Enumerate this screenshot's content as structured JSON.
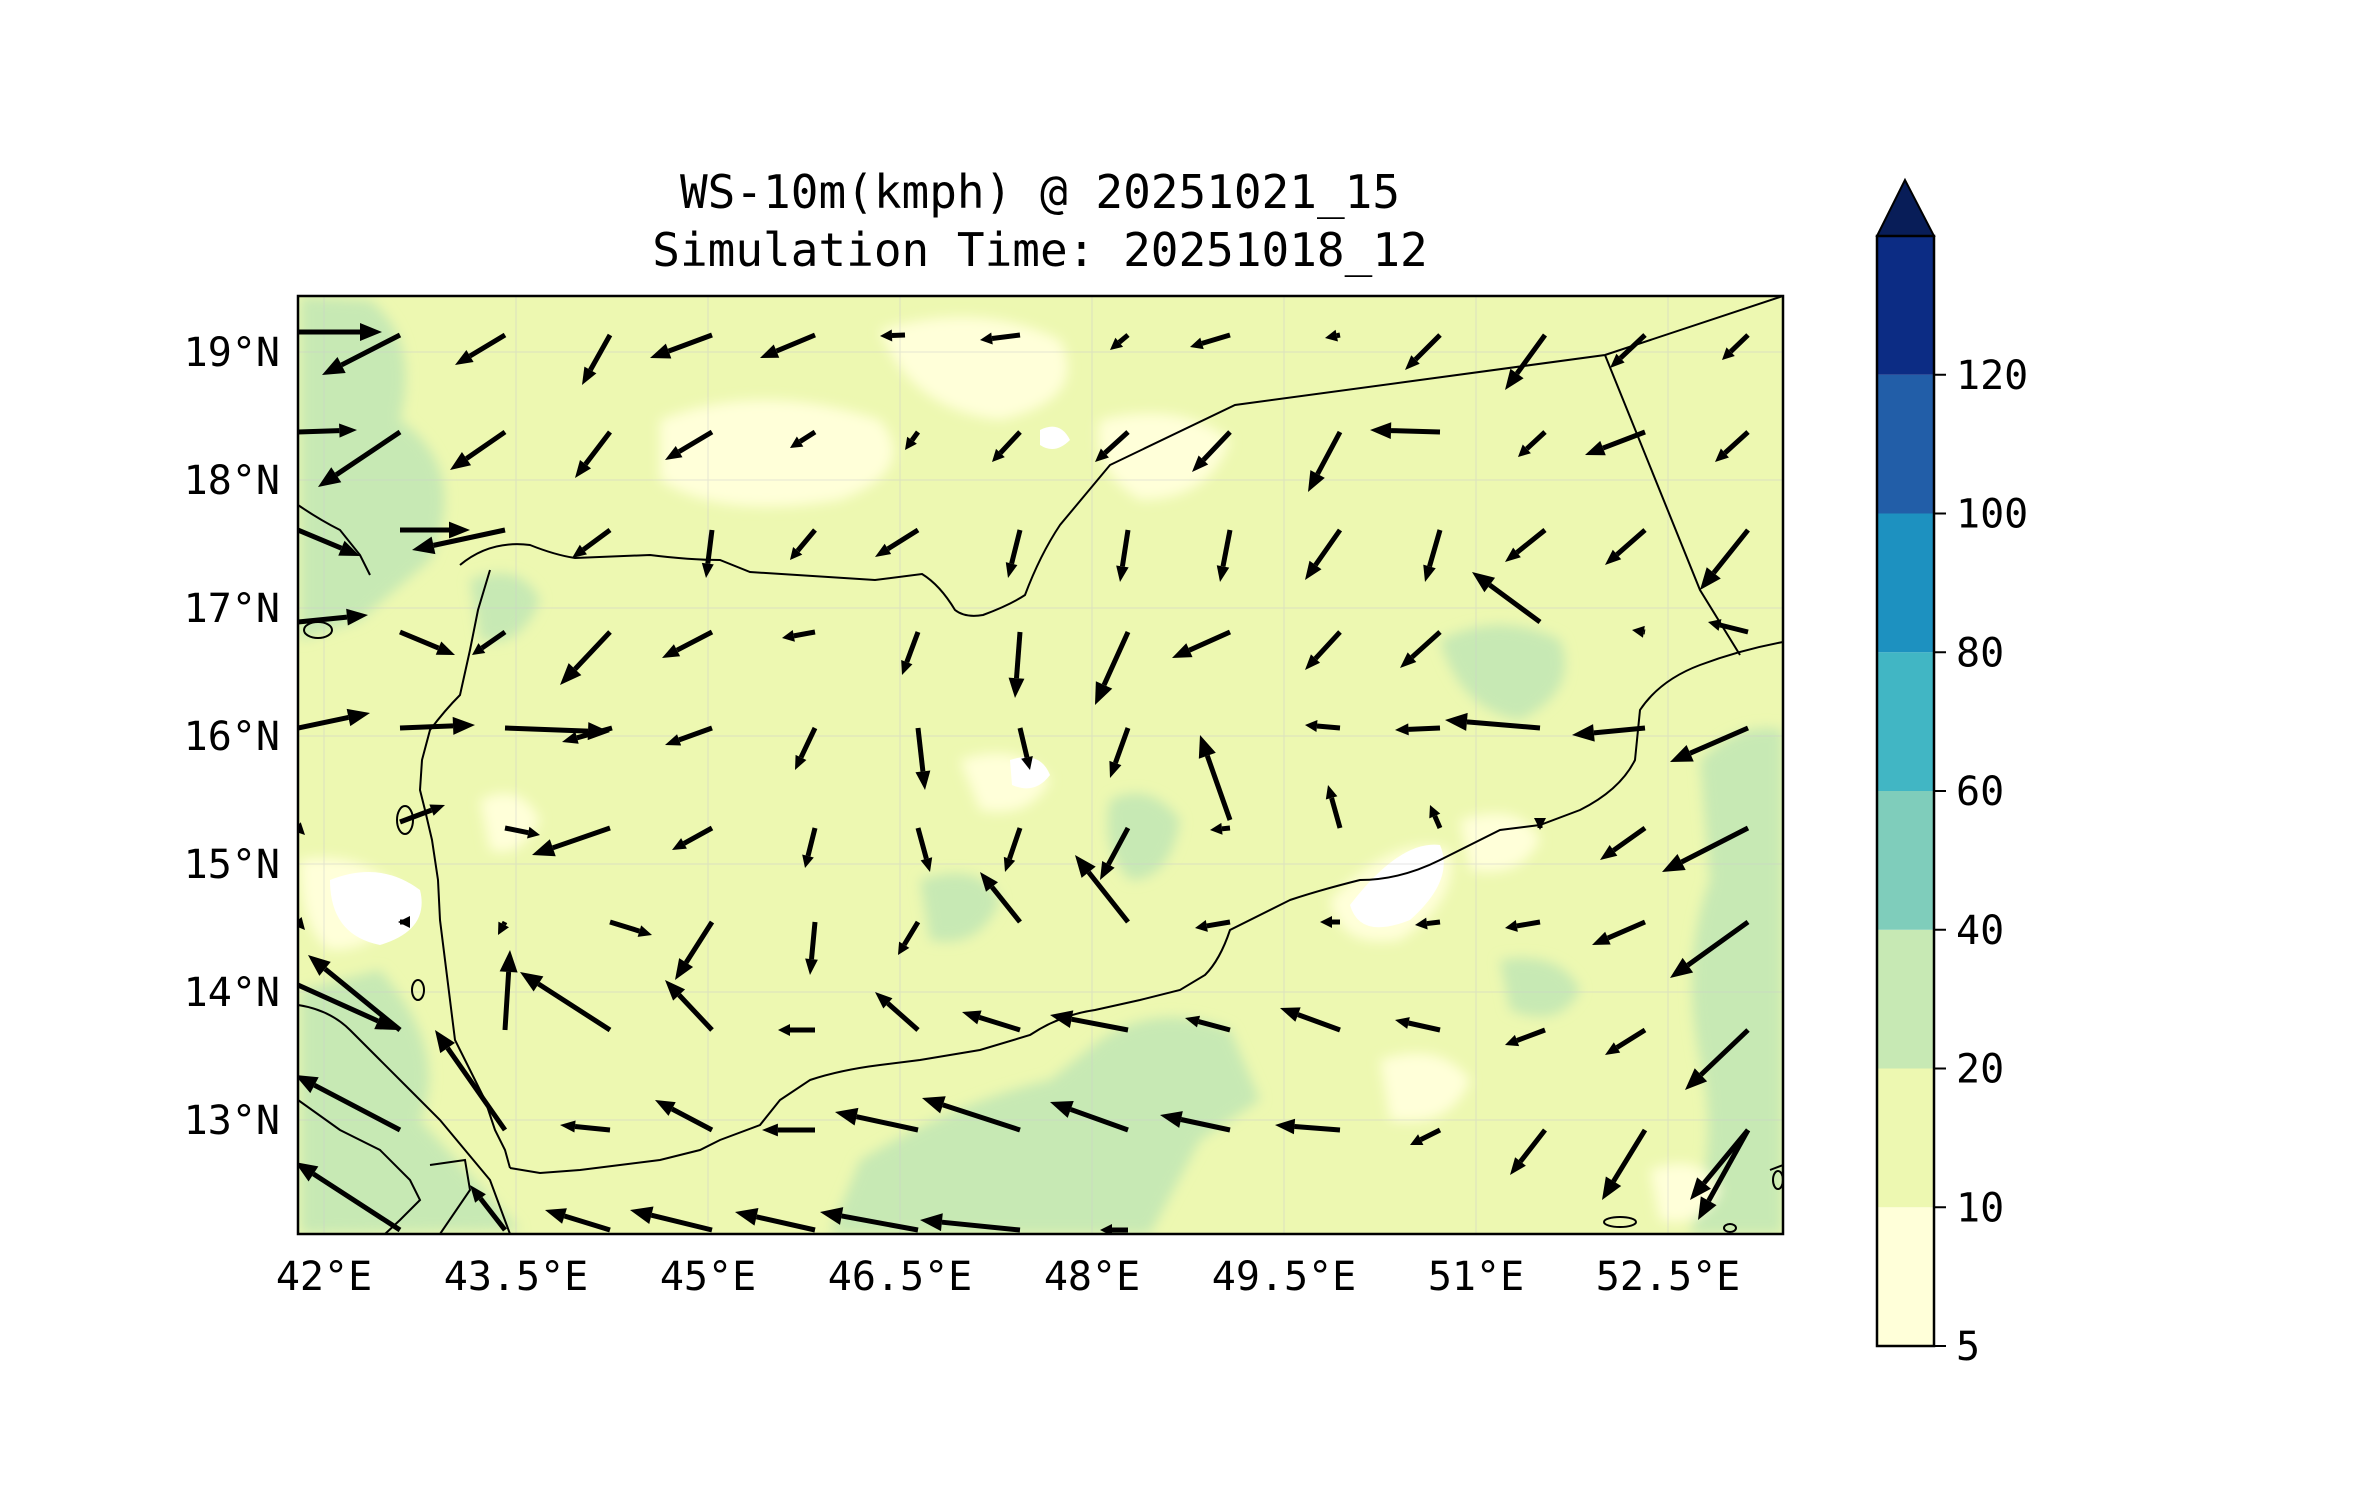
{
  "title": {
    "line1": "WS-10m(kmph) @ 20251021_15",
    "line2": "Simulation Time: 20251018_12"
  },
  "map": {
    "lon_range": [
      41.9,
      53.9
    ],
    "lat_range": [
      12.1,
      19.45
    ],
    "x_ticks": [
      "42°E",
      "43.5°E",
      "45°E",
      "46.5°E",
      "48°E",
      "49.5°E",
      "51°E",
      "52.5°E"
    ],
    "y_ticks": [
      "19°N",
      "18°N",
      "17°N",
      "16°N",
      "15°N",
      "14°N",
      "13°N"
    ],
    "grid": true
  },
  "colorbar": {
    "labels": [
      "5",
      "10",
      "20",
      "40",
      "60",
      "80",
      "100",
      "120"
    ],
    "colors": [
      "#ffffd9",
      "#edf8b1",
      "#c7e9b4",
      "#7fcdbb",
      "#41b6c4",
      "#1d91c0",
      "#225ea8",
      "#0c2c84"
    ],
    "extend_color": "#081d58",
    "extend": "max"
  },
  "chart_data": {
    "type": "heatmap",
    "variable": "WS-10m(kmph)",
    "colorbar_levels": [
      5,
      10,
      20,
      40,
      60,
      80,
      100,
      120
    ],
    "overlay": "wind vectors",
    "approx_field_range_kmph": [
      5,
      40
    ]
  }
}
